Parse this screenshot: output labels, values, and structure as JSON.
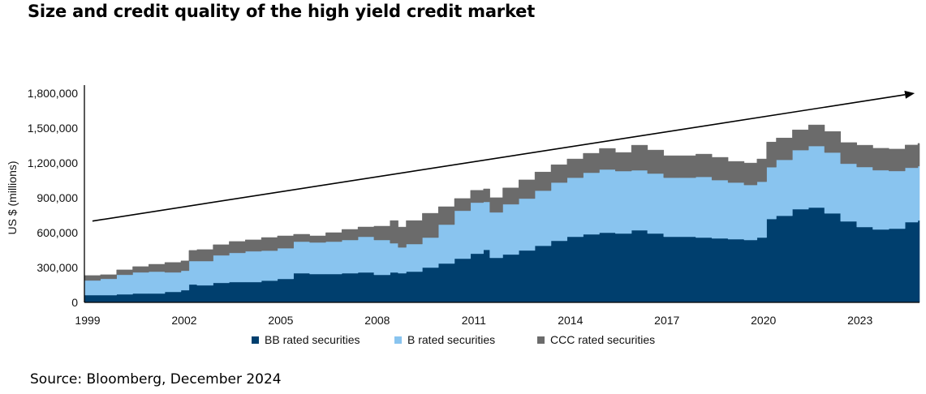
{
  "title": "Size and credit quality of the high yield credit market",
  "source": "Source: Bloomberg, December 2024",
  "chart_data": {
    "type": "area",
    "stacked": true,
    "title": "Size and credit quality of the high yield credit market",
    "xlabel": "",
    "ylabel": "US $ (millions)",
    "ylim": [
      0,
      1800000
    ],
    "xlim": [
      1999,
      2024.95
    ],
    "yticks": [
      0,
      300000,
      600000,
      900000,
      1200000,
      1500000,
      1800000
    ],
    "ytick_labels": [
      "0",
      "300,000",
      "600,000",
      "900,000",
      "1,200,000",
      "1,500,000",
      "1,800,000"
    ],
    "xticks": [
      1999,
      2002,
      2005,
      2008,
      2011,
      2014,
      2017,
      2020,
      2023
    ],
    "xtick_labels": [
      "1999",
      "2002",
      "2005",
      "2008",
      "2011",
      "2014",
      "2017",
      "2020",
      "2023"
    ],
    "grid": false,
    "legend_position": "bottom",
    "colors": {
      "BB": "#003f6e",
      "B": "#89c4ef",
      "CCC": "#6b6b6b",
      "arrow": "#000000"
    },
    "x": [
      1999.0,
      1999.5,
      2000.0,
      2000.5,
      2001.0,
      2001.5,
      2002.0,
      2002.25,
      2002.5,
      2003.0,
      2003.5,
      2004.0,
      2004.5,
      2005.0,
      2005.5,
      2006.0,
      2006.5,
      2007.0,
      2007.5,
      2008.0,
      2008.5,
      2008.75,
      2009.0,
      2009.5,
      2010.0,
      2010.5,
      2011.0,
      2011.4,
      2011.6,
      2012.0,
      2012.5,
      2013.0,
      2013.5,
      2014.0,
      2014.5,
      2015.0,
      2015.5,
      2016.0,
      2016.5,
      2017.0,
      2017.5,
      2018.0,
      2018.5,
      2019.0,
      2019.5,
      2019.9,
      2020.2,
      2020.5,
      2021.0,
      2021.5,
      2022.0,
      2022.5,
      2023.0,
      2023.5,
      2024.0,
      2024.5,
      2024.9
    ],
    "series": [
      {
        "name": "BB rated securities",
        "key": "BB",
        "values": [
          63000,
          63000,
          70000,
          77000,
          77000,
          91000,
          105000,
          154000,
          147000,
          168000,
          175000,
          175000,
          188000,
          202000,
          251000,
          244000,
          244000,
          251000,
          258000,
          237000,
          258000,
          251000,
          265000,
          300000,
          335000,
          377000,
          419000,
          453000,
          384000,
          412000,
          447000,
          488000,
          530000,
          565000,
          586000,
          600000,
          593000,
          621000,
          593000,
          565000,
          565000,
          558000,
          551000,
          544000,
          537000,
          558000,
          718000,
          746000,
          802000,
          816000,
          767000,
          698000,
          649000,
          628000,
          635000,
          691000,
          705000
        ]
      },
      {
        "name": "B rated securities",
        "key": "B",
        "values": [
          126000,
          140000,
          168000,
          182000,
          188000,
          168000,
          168000,
          202000,
          209000,
          237000,
          251000,
          265000,
          258000,
          265000,
          272000,
          272000,
          279000,
          286000,
          307000,
          300000,
          251000,
          223000,
          237000,
          258000,
          335000,
          412000,
          440000,
          412000,
          391000,
          433000,
          447000,
          474000,
          502000,
          509000,
          530000,
          544000,
          537000,
          516000,
          516000,
          509000,
          509000,
          523000,
          502000,
          488000,
          474000,
          481000,
          446000,
          481000,
          509000,
          530000,
          523000,
          496000,
          516000,
          510000,
          496000,
          468000,
          468000
        ]
      },
      {
        "name": "CCC rated securities",
        "key": "CCC",
        "values": [
          42000,
          35000,
          42000,
          49000,
          63000,
          84000,
          84000,
          91000,
          98000,
          91000,
          98000,
          98000,
          112000,
          105000,
          63000,
          56000,
          77000,
          91000,
          84000,
          119000,
          195000,
          174000,
          202000,
          209000,
          153000,
          105000,
          105000,
          112000,
          126000,
          140000,
          160000,
          160000,
          153000,
          160000,
          167000,
          181000,
          160000,
          216000,
          202000,
          188000,
          188000,
          195000,
          195000,
          181000,
          188000,
          195000,
          216000,
          188000,
          174000,
          181000,
          181000,
          181000,
          188000,
          188000,
          188000,
          195000,
          195000
        ]
      }
    ],
    "annotations": [
      {
        "type": "arrow",
        "from": [
          1999.25,
          700000
        ],
        "to": [
          2024.8,
          1800000
        ],
        "label": ""
      }
    ],
    "legend": [
      "BB rated securities",
      "B rated securities",
      "CCC rated securities"
    ]
  }
}
